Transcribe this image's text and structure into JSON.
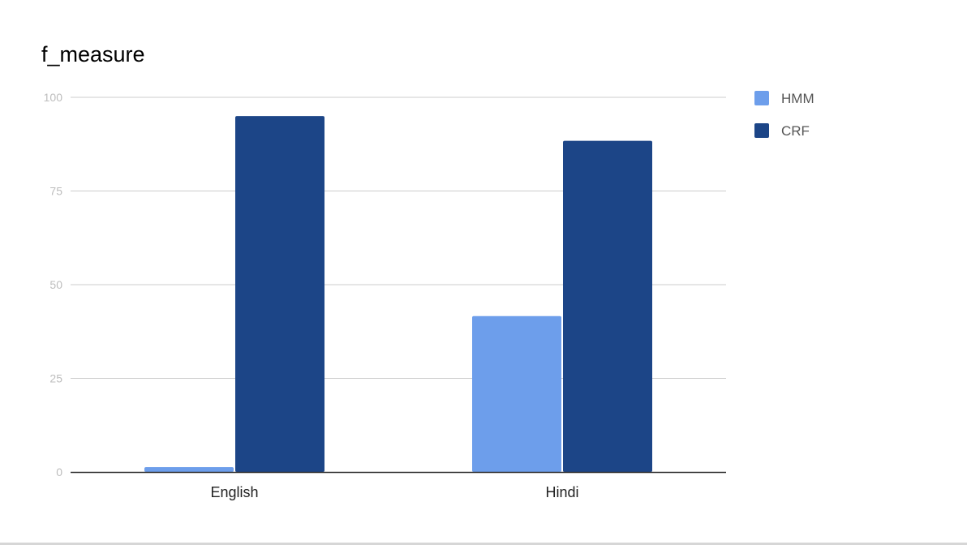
{
  "chart_data": {
    "type": "bar",
    "title": "f_measure",
    "xlabel": "",
    "ylabel": "",
    "categories": [
      "English",
      "Hindi"
    ],
    "series": [
      {
        "name": "HMM",
        "color": "#6d9eeb",
        "values": [
          1.3,
          41.6
        ]
      },
      {
        "name": "CRF",
        "color": "#1c4587",
        "values": [
          95.0,
          88.4
        ]
      }
    ],
    "ylim": [
      0,
      100
    ],
    "yticks": [
      "0",
      "25",
      "50",
      "75",
      "100"
    ],
    "grid": true,
    "legend_position": "right"
  }
}
